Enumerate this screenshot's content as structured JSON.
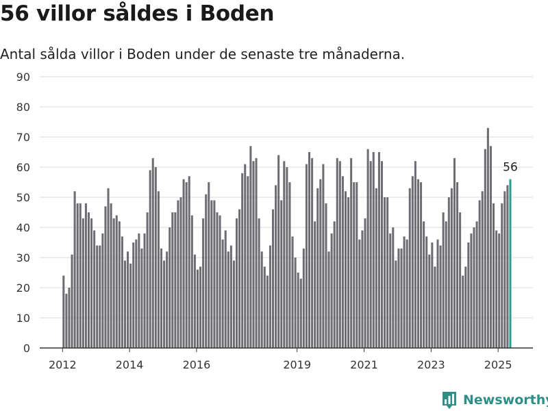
{
  "header": {
    "title": "56 villor såldes i Boden",
    "subtitle": "Antal sålda villor i Boden under de senaste tre månaderna."
  },
  "brand": {
    "name": "Newsworthy",
    "icon": "bar-chart-logo-icon"
  },
  "colors": {
    "bar": "#6d6c72",
    "highlight": "#2a9d8f",
    "grid": "#d9d9d9",
    "axis": "#333333"
  },
  "chart_data": {
    "type": "bar",
    "title": "56 villor såldes i Boden",
    "subtitle": "Antal sålda villor i Boden under de senaste tre månaderna.",
    "xlabel": "",
    "ylabel": "",
    "ylim": [
      0,
      90
    ],
    "yticks": [
      0,
      10,
      20,
      30,
      40,
      50,
      60,
      70,
      80,
      90
    ],
    "x_tick_labels": [
      "2012",
      "2014",
      "2016",
      "2019",
      "2021",
      "2023",
      "2025"
    ],
    "grid": true,
    "highlight_label": "56",
    "series": [
      {
        "segment": "2012-2013",
        "start": "2012-01",
        "values": [
          24,
          18,
          20,
          31,
          52,
          48,
          48,
          43,
          48,
          45,
          43,
          39,
          34,
          34,
          38,
          47,
          53,
          48,
          43,
          44,
          42,
          37,
          29,
          32
        ]
      },
      {
        "segment": "2014-2017",
        "start": "2014-01",
        "values": [
          28,
          35,
          36,
          38,
          33,
          38,
          45,
          59,
          63,
          60,
          52,
          33,
          29,
          32,
          40,
          45,
          45,
          49,
          50,
          56,
          55,
          57,
          44,
          31,
          26,
          27,
          43,
          51,
          55,
          49,
          49,
          45,
          44,
          36,
          39,
          32,
          34,
          29,
          43,
          46,
          58,
          61,
          57,
          67,
          62,
          63,
          43,
          32,
          27,
          24,
          34,
          46,
          54,
          64,
          49,
          62,
          60,
          55,
          37,
          30,
          25,
          23,
          33,
          61,
          65,
          63,
          42,
          53,
          56,
          61,
          48,
          32,
          38,
          42,
          63,
          62,
          57,
          52,
          50,
          63,
          55,
          55,
          36,
          39,
          43,
          66,
          62,
          65,
          53,
          65,
          62,
          50,
          50,
          38,
          40,
          29,
          33,
          33,
          37,
          36,
          53,
          57,
          62,
          56,
          55,
          42,
          37,
          31,
          35,
          27,
          36,
          34,
          45,
          42,
          50,
          53,
          63,
          55,
          45,
          24,
          27,
          35,
          38,
          40,
          42,
          49,
          52,
          66,
          73,
          67,
          48,
          39,
          38,
          48,
          52,
          54,
          56
        ]
      }
    ],
    "highlighted": {
      "date": "2025-05",
      "value": 56
    }
  }
}
